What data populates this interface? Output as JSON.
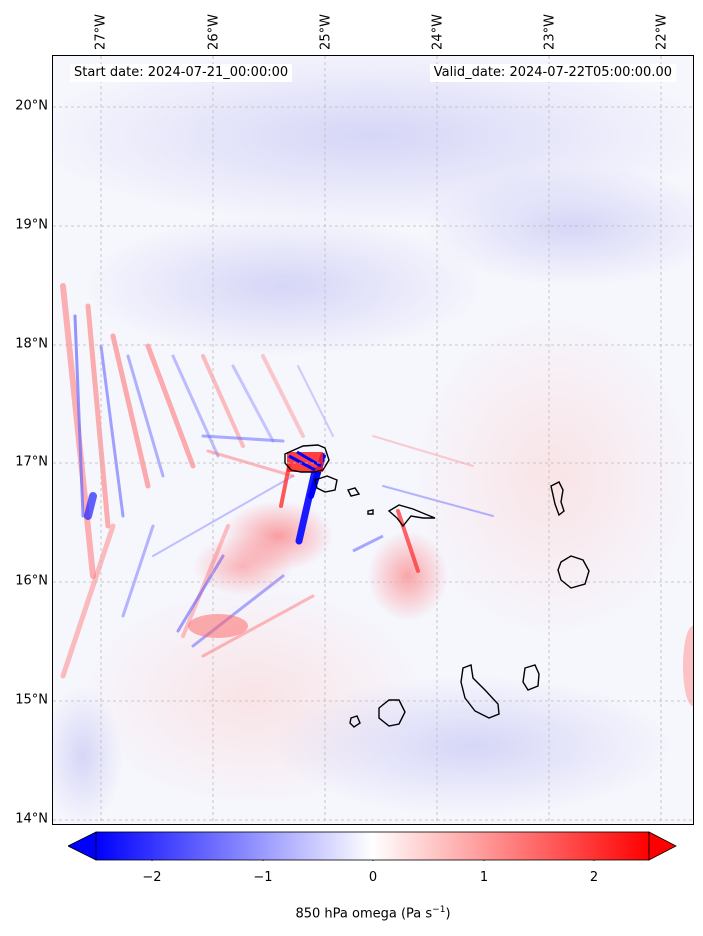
{
  "header": {
    "start_date": "Start date: 2024-07-21_00:00:00",
    "valid_date": "Valid_date: 2024-07-22T05:00:00.00"
  },
  "map": {
    "lon_labels": [
      "27°W",
      "26°W",
      "25°W",
      "24°W",
      "23°W",
      "22°W"
    ],
    "lat_labels": [
      "20°N",
      "19°N",
      "18°N",
      "17°N",
      "16°N",
      "15°N",
      "14°N"
    ],
    "extent": {
      "lon": [
        -27.35,
        -21.8
      ],
      "lat": [
        13.95,
        20.4
      ]
    },
    "gridlines": true,
    "coastline_color": "#000000"
  },
  "colorbar": {
    "ticks": [
      "−2",
      "−1",
      "0",
      "1",
      "2"
    ],
    "range": [
      -2.5,
      2.5
    ],
    "extend": "both",
    "colors": {
      "min": "#0000ff",
      "mid": "#ffffff",
      "max": "#ff0000"
    },
    "label": "850 hPa omega (Pa s",
    "label_exp": "−1",
    "label_close": ")"
  }
}
